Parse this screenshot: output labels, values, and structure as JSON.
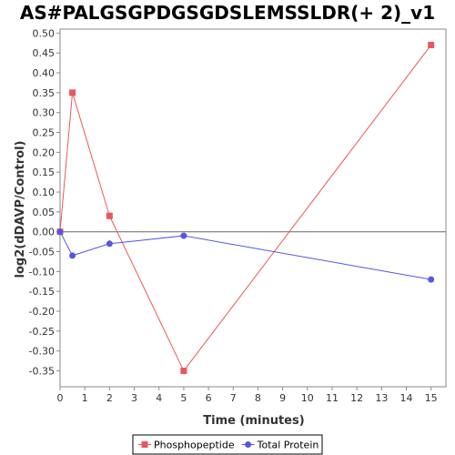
{
  "chart_data": {
    "type": "line",
    "title": "AS#PALGSGPDGSGDSLEMSSLDR(+ 2)_v1",
    "xlabel": "Time (minutes)",
    "ylabel": "log2(dDAVP/Control)",
    "xlim": [
      0,
      15.6
    ],
    "ylim": [
      -0.39,
      0.51
    ],
    "x_ticks": [
      0,
      1,
      2,
      3,
      4,
      5,
      6,
      7,
      8,
      9,
      10,
      11,
      12,
      13,
      14,
      15
    ],
    "y_ticks": [
      0.5,
      0.45,
      0.4,
      0.35,
      0.3,
      0.25,
      0.2,
      0.15,
      0.1,
      0.05,
      0.0,
      -0.05,
      -0.1,
      -0.15,
      -0.2,
      -0.25,
      -0.3,
      -0.35
    ],
    "zero_line": true,
    "grid": false,
    "legend_position": "bottom",
    "series": [
      {
        "name": "Phosphopeptide",
        "color": "#e8585a",
        "marker": "square",
        "points": [
          {
            "x": 0,
            "y": 0.0
          },
          {
            "x": 0.5,
            "y": 0.35
          },
          {
            "x": 2,
            "y": 0.04
          },
          {
            "x": 5,
            "y": -0.35
          },
          {
            "x": 15,
            "y": 0.47
          }
        ]
      },
      {
        "name": "Total Protein",
        "color": "#5555e8",
        "marker": "circle",
        "points": [
          {
            "x": 0,
            "y": 0.0
          },
          {
            "x": 0.5,
            "y": -0.06
          },
          {
            "x": 2,
            "y": -0.03
          },
          {
            "x": 5,
            "y": -0.01
          },
          {
            "x": 15,
            "y": -0.12
          }
        ]
      }
    ]
  }
}
